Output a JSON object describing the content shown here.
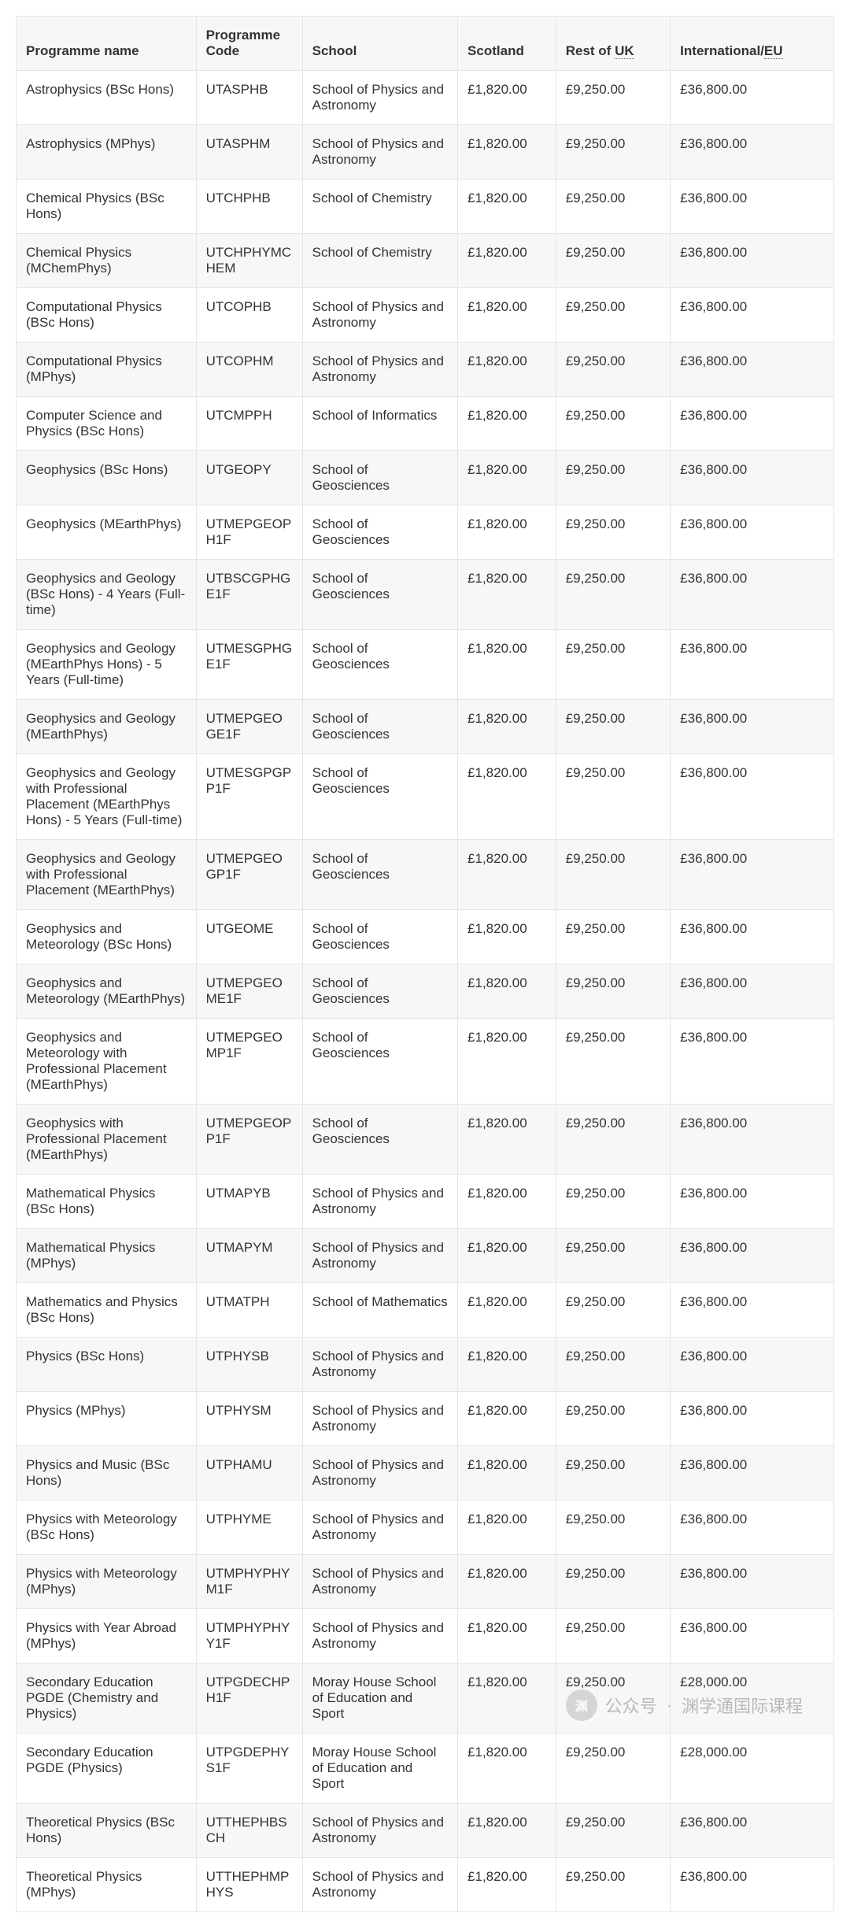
{
  "table": {
    "type": "table",
    "background_color": "#ffffff",
    "alt_row_color": "#f7f7f7",
    "border_color": "#e5e5e5",
    "text_color": "#333333",
    "header_fontweight": 700,
    "fontsize_pt": 13,
    "col_widths_pct": [
      22,
      13,
      19,
      12,
      14,
      20
    ],
    "columns": [
      {
        "key": "name",
        "label": "Programme name"
      },
      {
        "key": "code",
        "label": "Programme Code"
      },
      {
        "key": "school",
        "label": "School"
      },
      {
        "key": "scotland",
        "label": "Scotland"
      },
      {
        "key": "restuk_prefix",
        "label": "Rest of "
      },
      {
        "key": "restuk_abbr",
        "label": "UK"
      },
      {
        "key": "intl_prefix",
        "label": "International/"
      },
      {
        "key": "intl_abbr",
        "label": "EU"
      }
    ],
    "header": {
      "name": "Programme name",
      "code": "Programme Code",
      "school": "School",
      "scotland": "Scotland",
      "restuk_prefix": "Rest of ",
      "restuk_abbr": "UK",
      "intl_prefix": "International/",
      "intl_abbr": "EU"
    },
    "rows": [
      {
        "name": "Astrophysics (BSc Hons)",
        "code": "UTASPHB",
        "school": "School of Physics and Astronomy",
        "scotland": "£1,820.00",
        "restuk": "£9,250.00",
        "intl": "£36,800.00"
      },
      {
        "name": "Astrophysics (MPhys)",
        "code": "UTASPHM",
        "school": "School of Physics and Astronomy",
        "scotland": "£1,820.00",
        "restuk": "£9,250.00",
        "intl": "£36,800.00"
      },
      {
        "name": "Chemical Physics (BSc Hons)",
        "code": "UTCHPHB",
        "school": "School of Chemistry",
        "scotland": "£1,820.00",
        "restuk": "£9,250.00",
        "intl": "£36,800.00"
      },
      {
        "name": "Chemical Physics (MChemPhys)",
        "code": "UTCHPHYMCHEM",
        "school": "School of Chemistry",
        "scotland": "£1,820.00",
        "restuk": "£9,250.00",
        "intl": "£36,800.00"
      },
      {
        "name": "Computational Physics (BSc Hons)",
        "code": "UTCOPHB",
        "school": "School of Physics and Astronomy",
        "scotland": "£1,820.00",
        "restuk": "£9,250.00",
        "intl": "£36,800.00"
      },
      {
        "name": "Computational Physics (MPhys)",
        "code": "UTCOPHM",
        "school": "School of Physics and Astronomy",
        "scotland": "£1,820.00",
        "restuk": "£9,250.00",
        "intl": "£36,800.00"
      },
      {
        "name": "Computer Science and Physics (BSc Hons)",
        "code": "UTCMPPH",
        "school": "School of Informatics",
        "scotland": "£1,820.00",
        "restuk": "£9,250.00",
        "intl": "£36,800.00"
      },
      {
        "name": "Geophysics (BSc Hons)",
        "code": "UTGEOPY",
        "school": "School of Geosciences",
        "scotland": "£1,820.00",
        "restuk": "£9,250.00",
        "intl": "£36,800.00"
      },
      {
        "name": "Geophysics (MEarthPhys)",
        "code": "UTMEPGEOPH1F",
        "school": "School of Geosciences",
        "scotland": "£1,820.00",
        "restuk": "£9,250.00",
        "intl": "£36,800.00"
      },
      {
        "name": "Geophysics and Geology (BSc Hons) - 4 Years (Full-time)",
        "code": "UTBSCGPHGE1F",
        "school": "School of Geosciences",
        "scotland": "£1,820.00",
        "restuk": "£9,250.00",
        "intl": "£36,800.00"
      },
      {
        "name": "Geophysics and Geology (MEarthPhys Hons) - 5 Years (Full-time)",
        "code": "UTMESGPHGE1F",
        "school": "School of Geosciences",
        "scotland": "£1,820.00",
        "restuk": "£9,250.00",
        "intl": "£36,800.00"
      },
      {
        "name": "Geophysics and Geology (MEarthPhys)",
        "code": "UTMEPGEOGE1F",
        "school": "School of Geosciences",
        "scotland": "£1,820.00",
        "restuk": "£9,250.00",
        "intl": "£36,800.00"
      },
      {
        "name": "Geophysics and Geology with Professional Placement (MEarthPhys Hons) - 5 Years (Full-time)",
        "code": "UTMESGPGPP1F",
        "school": "School of Geosciences",
        "scotland": "£1,820.00",
        "restuk": "£9,250.00",
        "intl": "£36,800.00"
      },
      {
        "name": "Geophysics and Geology with Professional Placement (MEarthPhys)",
        "code": "UTMEPGEOGP1F",
        "school": "School of Geosciences",
        "scotland": "£1,820.00",
        "restuk": "£9,250.00",
        "intl": "£36,800.00"
      },
      {
        "name": "Geophysics and Meteorology (BSc Hons)",
        "code": "UTGEOME",
        "school": "School of Geosciences",
        "scotland": "£1,820.00",
        "restuk": "£9,250.00",
        "intl": "£36,800.00"
      },
      {
        "name": "Geophysics and Meteorology (MEarthPhys)",
        "code": "UTMEPGEOME1F",
        "school": "School of Geosciences",
        "scotland": "£1,820.00",
        "restuk": "£9,250.00",
        "intl": "£36,800.00"
      },
      {
        "name": "Geophysics and Meteorology with Professional Placement (MEarthPhys)",
        "code": "UTMEPGEOMP1F",
        "school": "School of Geosciences",
        "scotland": "£1,820.00",
        "restuk": "£9,250.00",
        "intl": "£36,800.00"
      },
      {
        "name": "Geophysics with Professional Placement (MEarthPhys)",
        "code": "UTMEPGEOPP1F",
        "school": "School of Geosciences",
        "scotland": "£1,820.00",
        "restuk": "£9,250.00",
        "intl": "£36,800.00"
      },
      {
        "name": "Mathematical Physics (BSc Hons)",
        "code": "UTMAPYB",
        "school": "School of Physics and Astronomy",
        "scotland": "£1,820.00",
        "restuk": "£9,250.00",
        "intl": "£36,800.00"
      },
      {
        "name": "Mathematical Physics (MPhys)",
        "code": "UTMAPYM",
        "school": "School of Physics and Astronomy",
        "scotland": "£1,820.00",
        "restuk": "£9,250.00",
        "intl": "£36,800.00"
      },
      {
        "name": "Mathematics and Physics (BSc Hons)",
        "code": "UTMATPH",
        "school": "School of Mathematics",
        "scotland": "£1,820.00",
        "restuk": "£9,250.00",
        "intl": "£36,800.00"
      },
      {
        "name": "Physics (BSc Hons)",
        "code": "UTPHYSB",
        "school": "School of Physics and Astronomy",
        "scotland": "£1,820.00",
        "restuk": "£9,250.00",
        "intl": "£36,800.00"
      },
      {
        "name": "Physics (MPhys)",
        "code": "UTPHYSM",
        "school": "School of Physics and Astronomy",
        "scotland": "£1,820.00",
        "restuk": "£9,250.00",
        "intl": "£36,800.00"
      },
      {
        "name": "Physics and Music (BSc Hons)",
        "code": "UTPHAMU",
        "school": "School of Physics and Astronomy",
        "scotland": "£1,820.00",
        "restuk": "£9,250.00",
        "intl": "£36,800.00"
      },
      {
        "name": "Physics with Meteorology (BSc Hons)",
        "code": "UTPHYME",
        "school": "School of Physics and Astronomy",
        "scotland": "£1,820.00",
        "restuk": "£9,250.00",
        "intl": "£36,800.00"
      },
      {
        "name": "Physics with Meteorology (MPhys)",
        "code": "UTMPHYPHYM1F",
        "school": "School of Physics and Astronomy",
        "scotland": "£1,820.00",
        "restuk": "£9,250.00",
        "intl": "£36,800.00"
      },
      {
        "name": "Physics with Year Abroad (MPhys)",
        "code": "UTMPHYPHYY1F",
        "school": "School of Physics and Astronomy",
        "scotland": "£1,820.00",
        "restuk": "£9,250.00",
        "intl": "£36,800.00"
      },
      {
        "name": "Secondary Education PGDE (Chemistry and Physics)",
        "code": "UTPGDECHPH1F",
        "school": "Moray House School of Education and Sport",
        "scotland": "£1,820.00",
        "restuk": "£9,250.00",
        "intl": "£28,000.00"
      },
      {
        "name": "Secondary Education PGDE (Physics)",
        "code": "UTPGDEPHYS1F",
        "school": "Moray House School of Education and Sport",
        "scotland": "£1,820.00",
        "restuk": "£9,250.00",
        "intl": "£28,000.00"
      },
      {
        "name": "Theoretical Physics (BSc Hons)",
        "code": "UTTHEPHBSCH",
        "school": "School of Physics and Astronomy",
        "scotland": "£1,820.00",
        "restuk": "£9,250.00",
        "intl": "£36,800.00"
      },
      {
        "name": "Theoretical Physics (MPhys)",
        "code": "UTTHEPHMPHYS",
        "school": "School of Physics and Astronomy",
        "scotland": "£1,820.00",
        "restuk": "£9,250.00",
        "intl": "£36,800.00"
      }
    ]
  },
  "watermark": {
    "account_label": "公众号",
    "separator": "·",
    "account_name": "渊学通国际课程",
    "icon_glyph": "渊"
  }
}
